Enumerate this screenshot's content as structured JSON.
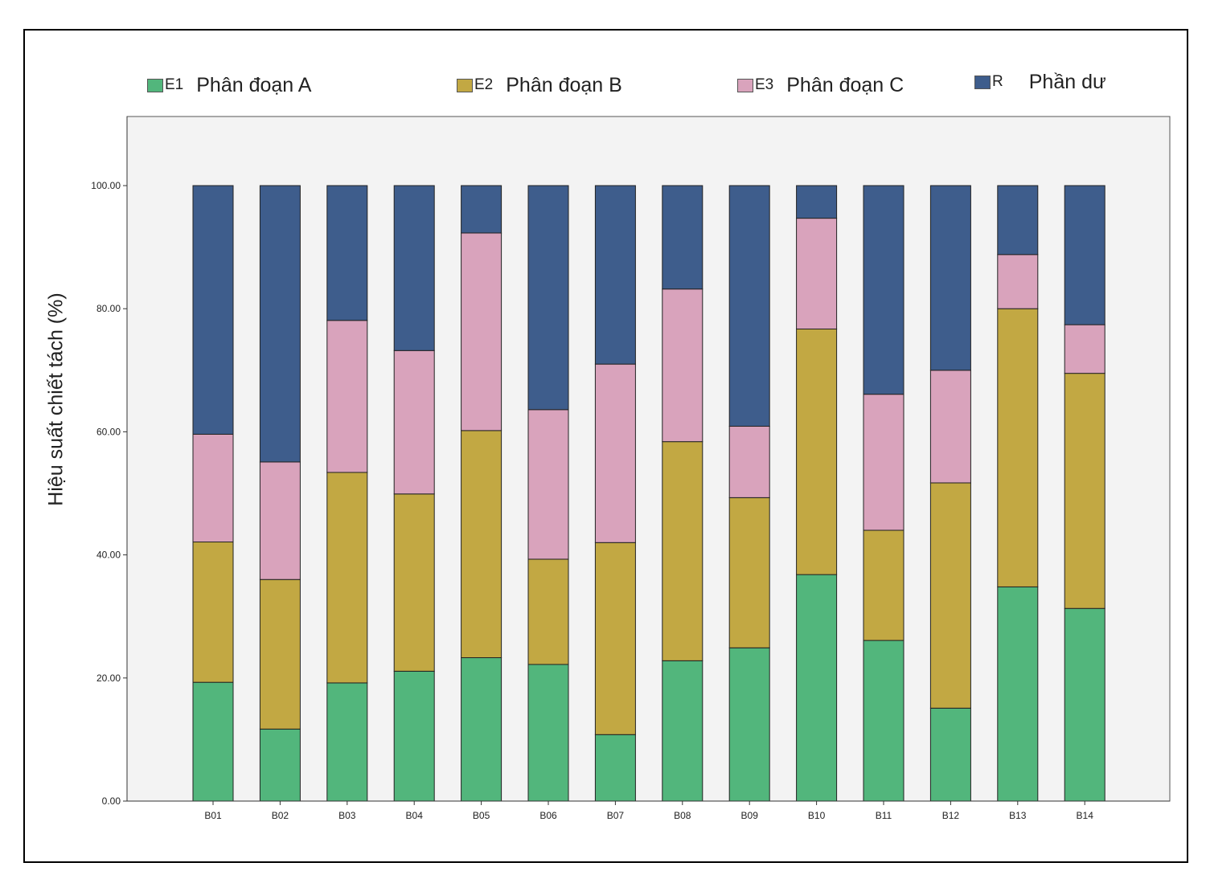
{
  "chart_data": {
    "type": "bar",
    "stacked": true,
    "title": "",
    "xlabel": "",
    "ylabel": "Hiệu suất chiết tách (%)",
    "ylim": [
      0,
      100
    ],
    "yticks": [
      "0.00",
      "20.00",
      "40.00",
      "60.00",
      "80.00",
      "100.00"
    ],
    "categories": [
      "B01",
      "B02",
      "B03",
      "B04",
      "B05",
      "B06",
      "B07",
      "B08",
      "B09",
      "B10",
      "B11",
      "B12",
      "B13",
      "B14"
    ],
    "series": [
      {
        "code": "E1",
        "name": "Phân đoạn A",
        "color": "#52b67c",
        "values": [
          19.3,
          11.7,
          19.2,
          21.1,
          23.3,
          22.2,
          10.8,
          22.8,
          24.9,
          36.8,
          26.1,
          15.1,
          34.8,
          31.3
        ]
      },
      {
        "code": "E2",
        "name": "Phân đoạn B",
        "color": "#c2a843",
        "values": [
          22.8,
          24.3,
          34.2,
          28.8,
          36.9,
          17.1,
          31.2,
          35.6,
          24.4,
          39.9,
          17.9,
          36.6,
          45.2,
          38.2
        ]
      },
      {
        "code": "E3",
        "name": "Phân đoạn C",
        "color": "#d9a3bc",
        "values": [
          17.5,
          19.1,
          24.7,
          23.3,
          32.1,
          24.3,
          29.0,
          24.8,
          11.6,
          18.0,
          22.1,
          18.3,
          8.8,
          7.9
        ]
      },
      {
        "code": "R",
        "name": "Phần dư",
        "color": "#3e5d8c",
        "values": [
          40.4,
          44.9,
          21.9,
          26.8,
          7.7,
          36.4,
          29.0,
          16.8,
          39.1,
          5.3,
          33.9,
          30.0,
          11.2,
          22.6
        ]
      }
    ]
  }
}
